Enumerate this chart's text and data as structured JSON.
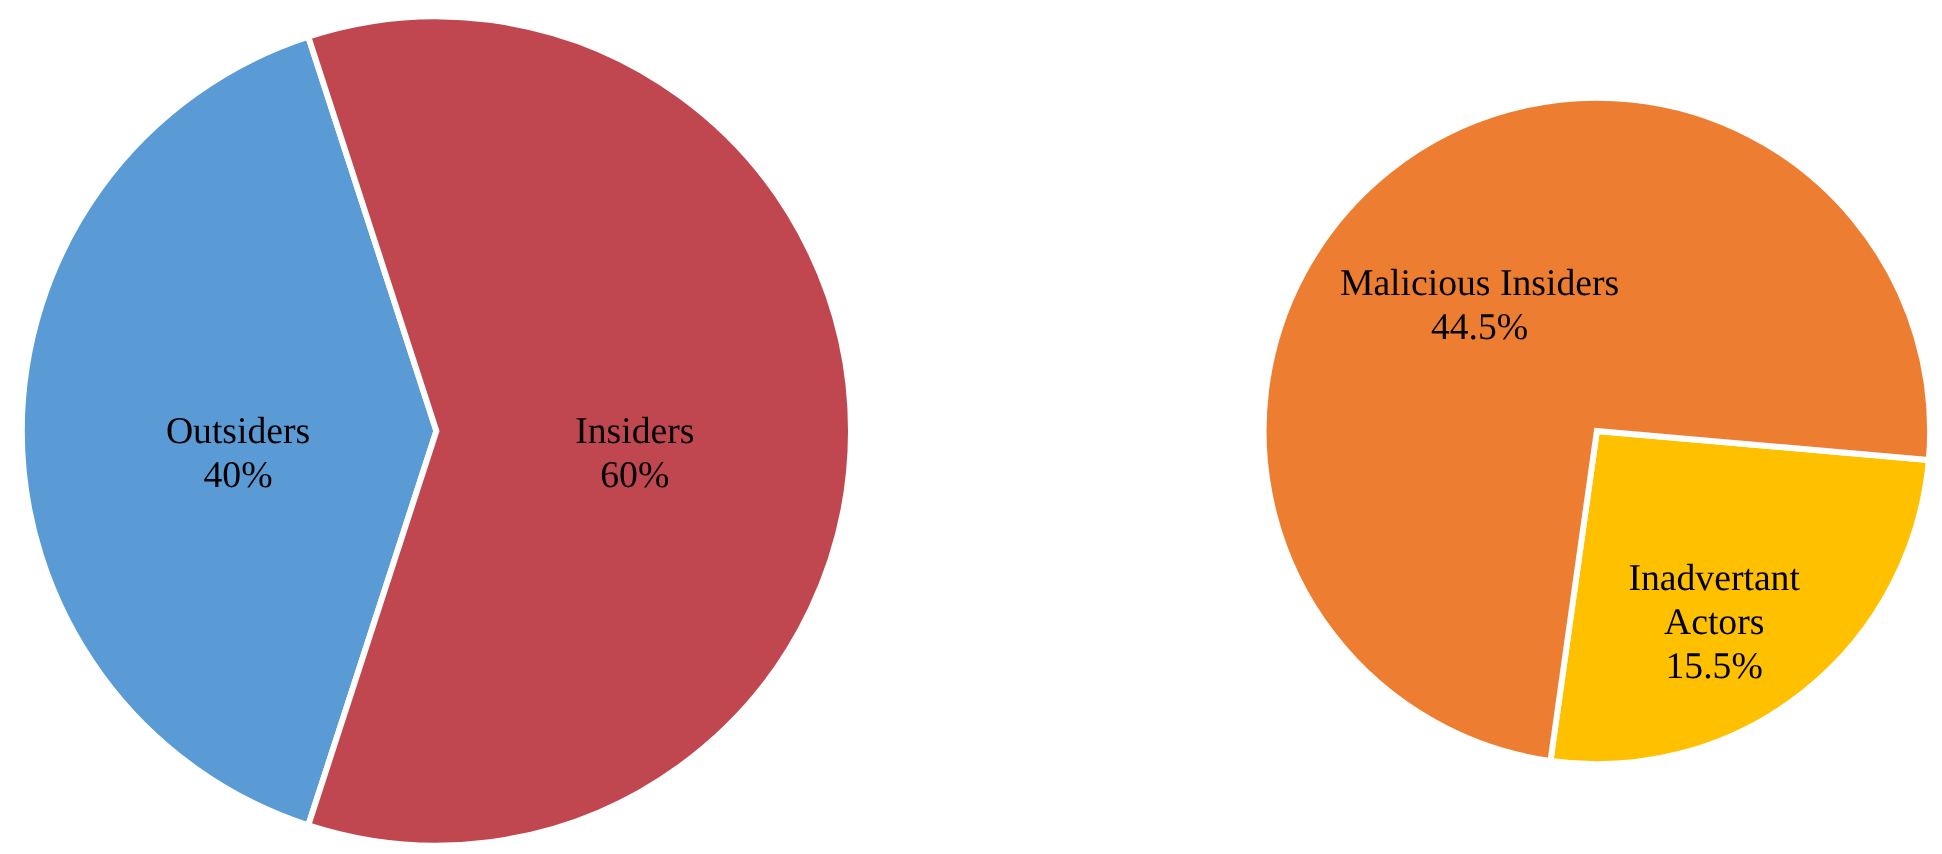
{
  "chart_data": [
    {
      "type": "pie",
      "categories": [
        "Outsiders",
        "Insiders"
      ],
      "values": [
        40,
        60
      ],
      "value_labels": [
        "40%",
        "60%"
      ],
      "colors": [
        "#5b9bd5",
        "#c0474f"
      ],
      "legend": false
    },
    {
      "type": "pie",
      "categories": [
        "Inadvertant Actors",
        "Malicious Insiders"
      ],
      "values": [
        15.5,
        44.5
      ],
      "value_labels": [
        "15.5%",
        "44.5%"
      ],
      "colors": [
        "#ffc000",
        "#ed7d31"
      ],
      "legend": false
    }
  ]
}
